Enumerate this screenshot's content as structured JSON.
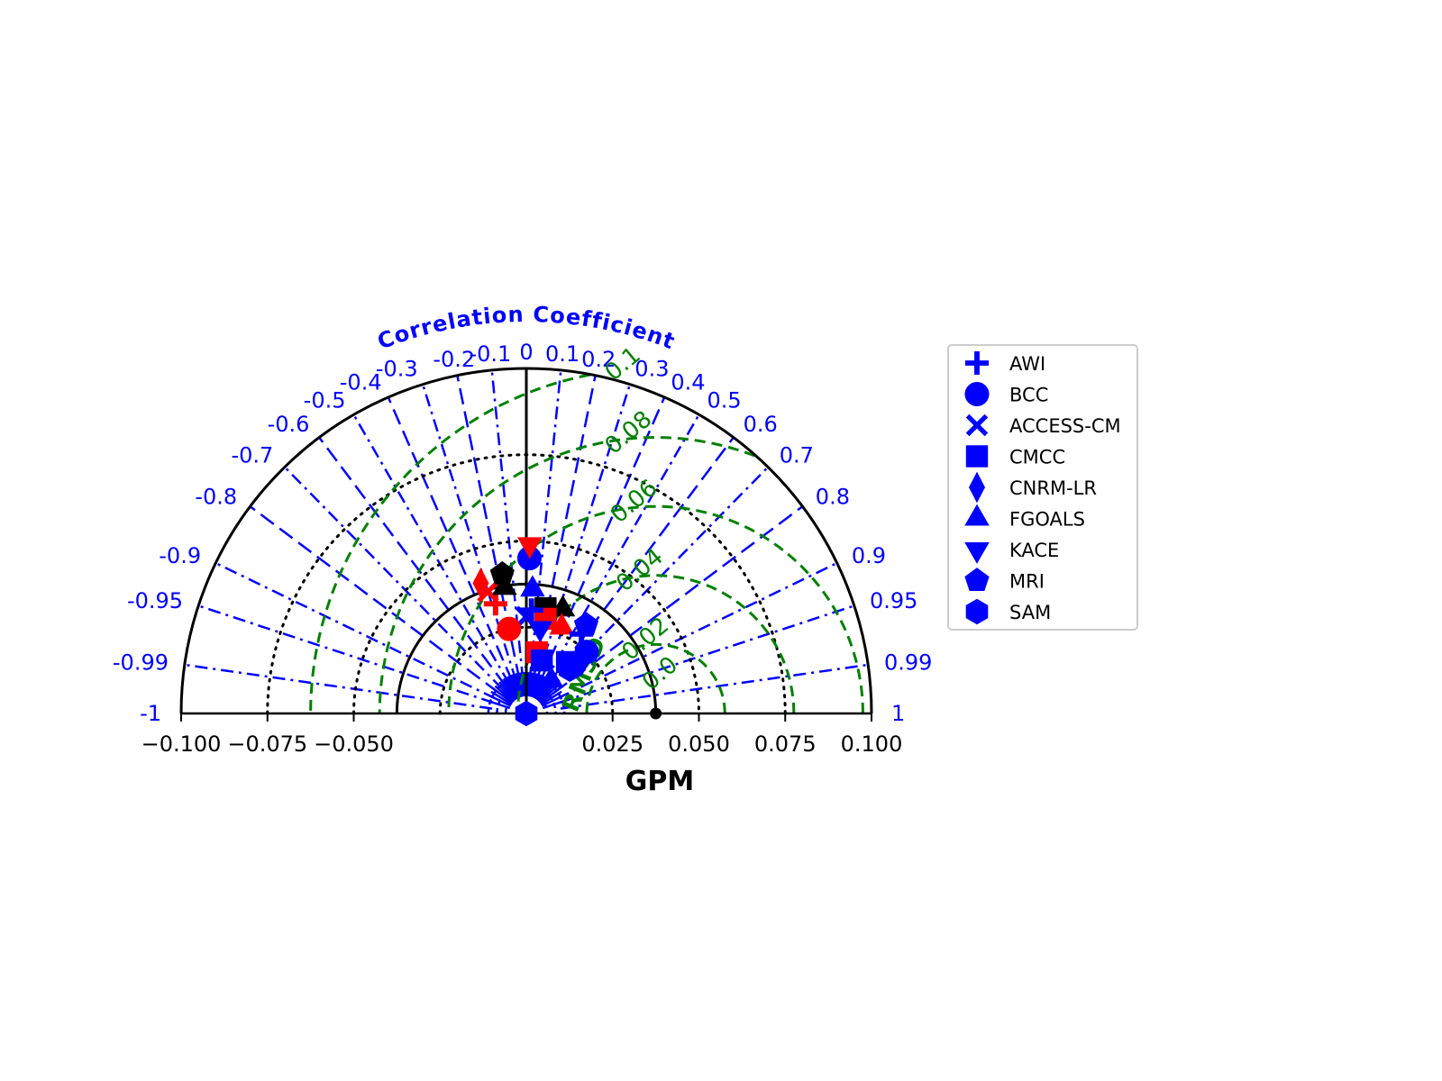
{
  "chart_data": {
    "type": "scatter",
    "subtype": "taylor-diagram",
    "corr_title": "Correlation Coefficient",
    "xlabel": "GPM",
    "rmsd_label": "RMSD",
    "std_ticks": [
      -0.1,
      -0.075,
      -0.05,
      0.025,
      0.05,
      0.075,
      0.1
    ],
    "std_tick_labels": [
      "−0.100",
      "−0.075",
      "−0.050",
      "0.025",
      "0.050",
      "0.075",
      "0.100"
    ],
    "std_max": 0.1,
    "ref_std": 0.0375,
    "corr_ticks": [
      "-1",
      "-0.99",
      "-0.95",
      "-0.9",
      "-0.8",
      "-0.7",
      "-0.6",
      "-0.5",
      "-0.4",
      "-0.3",
      "-0.2",
      "-0.1",
      "0",
      "0.1",
      "0.2",
      "0.3",
      "0.4",
      "0.5",
      "0.6",
      "0.7",
      "0.8",
      "0.9",
      "0.95",
      "0.99",
      "1"
    ],
    "rmsd_ticks": [
      "0.0",
      "0.02",
      "0.04",
      "0.06",
      "0.08",
      "0.1"
    ],
    "rmsd_values": [
      0.02,
      0.04,
      0.06,
      0.08,
      0.1
    ],
    "std_dotted_circles": [
      0.025,
      0.05,
      0.075
    ],
    "colors": {
      "axis": "#000000",
      "corr": "#0000ff",
      "rmsd": "#008000",
      "series_primary": "#0000ff",
      "series_secondary": "#ff0000",
      "series_tertiary": "#000000"
    },
    "legend": {
      "placement": "right",
      "entries": [
        {
          "label": "AWI",
          "marker": "plus"
        },
        {
          "label": "BCC",
          "marker": "circle"
        },
        {
          "label": "ACCESS-CM",
          "marker": "x"
        },
        {
          "label": "CMCC",
          "marker": "square"
        },
        {
          "label": "CNRM-LR",
          "marker": "diamond"
        },
        {
          "label": "FGOALS",
          "marker": "triangle-up"
        },
        {
          "label": "KACE",
          "marker": "triangle-down"
        },
        {
          "label": "MRI",
          "marker": "pentagon"
        },
        {
          "label": "SAM",
          "marker": "hexagon"
        }
      ]
    },
    "points": [
      {
        "model": "REF",
        "marker": "circle",
        "color": "#000000",
        "std": 0.0375,
        "corr": 1.0
      },
      {
        "model": "SAM",
        "marker": "hexagon",
        "color": "#0000ff",
        "std": 0.0,
        "corr": 0.0
      },
      {
        "model": "BCC",
        "marker": "circle",
        "color": "#0000ff",
        "std": 0.045,
        "corr": 0.02
      },
      {
        "model": "KACE",
        "marker": "triangle-down",
        "color": "#ff0000",
        "std": 0.049,
        "corr": 0.02
      },
      {
        "model": "FGOALS",
        "marker": "triangle-up",
        "color": "#0000ff",
        "std": 0.036,
        "corr": 0.05
      },
      {
        "model": "CNRM-LR",
        "marker": "diamond",
        "color": "#ff0000",
        "std": 0.04,
        "corr": -0.33
      },
      {
        "model": "AWI",
        "marker": "plus",
        "color": "#ff0000",
        "std": 0.033,
        "corr": -0.27
      },
      {
        "model": "ACCESS-CM",
        "marker": "x",
        "color": "#ff0000",
        "std": 0.037,
        "corr": -0.3
      },
      {
        "model": "MRI",
        "marker": "pentagon",
        "color": "#000000",
        "std": 0.041,
        "corr": -0.17
      },
      {
        "model": "FGOALS",
        "marker": "triangle-up",
        "color": "#000000",
        "std": 0.037,
        "corr": -0.17
      },
      {
        "model": "CMCC",
        "marker": "square",
        "color": "#000000",
        "std": 0.031,
        "corr": 0.18
      },
      {
        "model": "FGOALS",
        "marker": "triangle-up",
        "color": "#000000",
        "std": 0.032,
        "corr": 0.33
      },
      {
        "model": "CMCC",
        "marker": "square",
        "color": "#ff0000",
        "std": 0.028,
        "corr": 0.2
      },
      {
        "model": "KACE",
        "marker": "triangle-down",
        "color": "#0000ff",
        "std": 0.025,
        "corr": 0.16
      },
      {
        "model": "FGOALS",
        "marker": "triangle-up",
        "color": "#ff0000",
        "std": 0.027,
        "corr": 0.38
      },
      {
        "model": "MRI",
        "marker": "pentagon",
        "color": "#0000ff",
        "std": 0.031,
        "corr": 0.56
      },
      {
        "model": "AWI",
        "marker": "plus",
        "color": "#0000ff",
        "std": 0.028,
        "corr": 0.57
      },
      {
        "model": "BCC",
        "marker": "circle",
        "color": "#0000ff",
        "std": 0.025,
        "corr": 0.7
      },
      {
        "model": "KACE",
        "marker": "triangle-down",
        "color": "#0000ff",
        "std": 0.022,
        "corr": 0.73
      },
      {
        "model": "CMCC",
        "marker": "square",
        "color": "#0000ff",
        "std": 0.019,
        "corr": 0.62
      },
      {
        "model": "SAM",
        "marker": "hexagon",
        "color": "#0000ff",
        "std": 0.018,
        "corr": 0.7
      },
      {
        "model": "AWI",
        "marker": "plus",
        "color": "#0000ff",
        "std": 0.03,
        "corr": 0.05
      },
      {
        "model": "ACCESS-CM",
        "marker": "x",
        "color": "#0000ff",
        "std": 0.028,
        "corr": 0.0
      },
      {
        "model": "BCC",
        "marker": "circle",
        "color": "#ff0000",
        "std": 0.025,
        "corr": -0.2
      },
      {
        "model": "CMCC",
        "marker": "square",
        "color": "#ff0000",
        "std": 0.018,
        "corr": 0.17
      },
      {
        "model": "CMCC",
        "marker": "square",
        "color": "#0000ff",
        "std": 0.016,
        "corr": 0.28
      },
      {
        "model": "FGOALS",
        "marker": "triangle-up",
        "color": "#0000ff",
        "std": 0.012,
        "corr": 0.6
      }
    ]
  }
}
